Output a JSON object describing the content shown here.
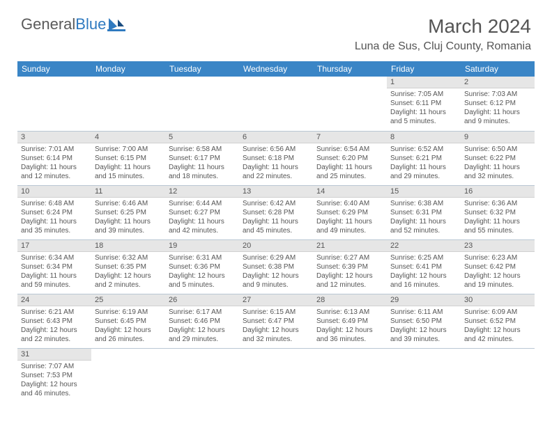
{
  "logo": {
    "text1": "General",
    "text2": "Blue"
  },
  "title": "March 2024",
  "location": "Luna de Sus, Cluj County, Romania",
  "colors": {
    "header_bg": "#3a85c6",
    "header_text": "#ffffff",
    "daynum_bg": "#e6e6e6",
    "text": "#555555",
    "row_sep": "#b9c7d4",
    "logo_blue": "#2f7ac0"
  },
  "weekdays": [
    "Sunday",
    "Monday",
    "Tuesday",
    "Wednesday",
    "Thursday",
    "Friday",
    "Saturday"
  ],
  "weeks": [
    [
      null,
      null,
      null,
      null,
      null,
      {
        "d": "1",
        "sr": "7:05 AM",
        "ss": "6:11 PM",
        "dl": "11 hours and 5 minutes."
      },
      {
        "d": "2",
        "sr": "7:03 AM",
        "ss": "6:12 PM",
        "dl": "11 hours and 9 minutes."
      }
    ],
    [
      {
        "d": "3",
        "sr": "7:01 AM",
        "ss": "6:14 PM",
        "dl": "11 hours and 12 minutes."
      },
      {
        "d": "4",
        "sr": "7:00 AM",
        "ss": "6:15 PM",
        "dl": "11 hours and 15 minutes."
      },
      {
        "d": "5",
        "sr": "6:58 AM",
        "ss": "6:17 PM",
        "dl": "11 hours and 18 minutes."
      },
      {
        "d": "6",
        "sr": "6:56 AM",
        "ss": "6:18 PM",
        "dl": "11 hours and 22 minutes."
      },
      {
        "d": "7",
        "sr": "6:54 AM",
        "ss": "6:20 PM",
        "dl": "11 hours and 25 minutes."
      },
      {
        "d": "8",
        "sr": "6:52 AM",
        "ss": "6:21 PM",
        "dl": "11 hours and 29 minutes."
      },
      {
        "d": "9",
        "sr": "6:50 AM",
        "ss": "6:22 PM",
        "dl": "11 hours and 32 minutes."
      }
    ],
    [
      {
        "d": "10",
        "sr": "6:48 AM",
        "ss": "6:24 PM",
        "dl": "11 hours and 35 minutes."
      },
      {
        "d": "11",
        "sr": "6:46 AM",
        "ss": "6:25 PM",
        "dl": "11 hours and 39 minutes."
      },
      {
        "d": "12",
        "sr": "6:44 AM",
        "ss": "6:27 PM",
        "dl": "11 hours and 42 minutes."
      },
      {
        "d": "13",
        "sr": "6:42 AM",
        "ss": "6:28 PM",
        "dl": "11 hours and 45 minutes."
      },
      {
        "d": "14",
        "sr": "6:40 AM",
        "ss": "6:29 PM",
        "dl": "11 hours and 49 minutes."
      },
      {
        "d": "15",
        "sr": "6:38 AM",
        "ss": "6:31 PM",
        "dl": "11 hours and 52 minutes."
      },
      {
        "d": "16",
        "sr": "6:36 AM",
        "ss": "6:32 PM",
        "dl": "11 hours and 55 minutes."
      }
    ],
    [
      {
        "d": "17",
        "sr": "6:34 AM",
        "ss": "6:34 PM",
        "dl": "11 hours and 59 minutes."
      },
      {
        "d": "18",
        "sr": "6:32 AM",
        "ss": "6:35 PM",
        "dl": "12 hours and 2 minutes."
      },
      {
        "d": "19",
        "sr": "6:31 AM",
        "ss": "6:36 PM",
        "dl": "12 hours and 5 minutes."
      },
      {
        "d": "20",
        "sr": "6:29 AM",
        "ss": "6:38 PM",
        "dl": "12 hours and 9 minutes."
      },
      {
        "d": "21",
        "sr": "6:27 AM",
        "ss": "6:39 PM",
        "dl": "12 hours and 12 minutes."
      },
      {
        "d": "22",
        "sr": "6:25 AM",
        "ss": "6:41 PM",
        "dl": "12 hours and 16 minutes."
      },
      {
        "d": "23",
        "sr": "6:23 AM",
        "ss": "6:42 PM",
        "dl": "12 hours and 19 minutes."
      }
    ],
    [
      {
        "d": "24",
        "sr": "6:21 AM",
        "ss": "6:43 PM",
        "dl": "12 hours and 22 minutes."
      },
      {
        "d": "25",
        "sr": "6:19 AM",
        "ss": "6:45 PM",
        "dl": "12 hours and 26 minutes."
      },
      {
        "d": "26",
        "sr": "6:17 AM",
        "ss": "6:46 PM",
        "dl": "12 hours and 29 minutes."
      },
      {
        "d": "27",
        "sr": "6:15 AM",
        "ss": "6:47 PM",
        "dl": "12 hours and 32 minutes."
      },
      {
        "d": "28",
        "sr": "6:13 AM",
        "ss": "6:49 PM",
        "dl": "12 hours and 36 minutes."
      },
      {
        "d": "29",
        "sr": "6:11 AM",
        "ss": "6:50 PM",
        "dl": "12 hours and 39 minutes."
      },
      {
        "d": "30",
        "sr": "6:09 AM",
        "ss": "6:52 PM",
        "dl": "12 hours and 42 minutes."
      }
    ],
    [
      {
        "d": "31",
        "sr": "7:07 AM",
        "ss": "7:53 PM",
        "dl": "12 hours and 46 minutes."
      },
      null,
      null,
      null,
      null,
      null,
      null
    ]
  ],
  "labels": {
    "sunrise": "Sunrise:",
    "sunset": "Sunset:",
    "daylight": "Daylight:"
  }
}
